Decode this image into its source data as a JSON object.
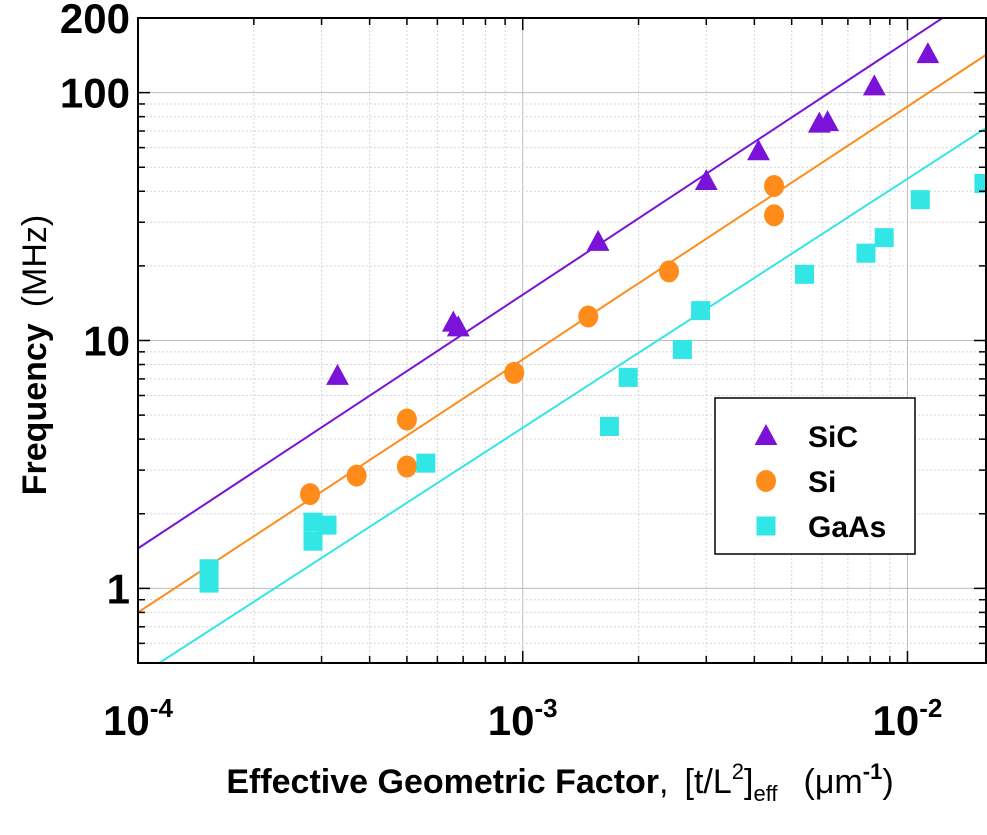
{
  "chart_data": {
    "type": "scatter",
    "x_scale": "log",
    "y_scale": "log",
    "xlim": [
      0.0001,
      0.016
    ],
    "ylim": [
      0.5,
      200
    ],
    "grid": true,
    "legend_position": "lower-right",
    "x_ticks": [
      {
        "value": 0.0001,
        "base": "10",
        "exp": "-4"
      },
      {
        "value": 0.001,
        "base": "10",
        "exp": "-3"
      },
      {
        "value": 0.01,
        "base": "10",
        "exp": "-2"
      }
    ],
    "y_ticks": [
      {
        "value": 1,
        "label": "1"
      },
      {
        "value": 10,
        "label": "10"
      },
      {
        "value": 100,
        "label": "100"
      },
      {
        "value": 200,
        "label": "200"
      }
    ],
    "xlabel": {
      "main": "Effective Geometric Factor",
      "comma": ",",
      "bracket_open": "[",
      "t_over_L": "t/L",
      "l_exp": "2",
      "bracket_close": "]",
      "subscript": "eff",
      "unit_open": "(",
      "unit_mu": "μm",
      "unit_exp": "-1",
      "unit_close": ")"
    },
    "ylabel": {
      "main": "Frequency",
      "unit": "(MHz)"
    },
    "series": [
      {
        "name": "SiC",
        "marker": "triangle",
        "color": "#7a12d8",
        "points": [
          [
            0.00033,
            7.2
          ],
          [
            0.00066,
            11.8
          ],
          [
            0.00068,
            11.3
          ],
          [
            0.00157,
            25
          ],
          [
            0.003,
            44
          ],
          [
            0.0041,
            58
          ],
          [
            0.0059,
            75
          ],
          [
            0.0062,
            76
          ],
          [
            0.0082,
            106
          ],
          [
            0.0113,
            143
          ]
        ],
        "fit_line": [
          [
            0.0001,
            1.45
          ],
          [
            0.016,
            261
          ]
        ]
      },
      {
        "name": "Si",
        "marker": "circle",
        "color": "#ff8c1a",
        "points": [
          [
            0.00028,
            2.4
          ],
          [
            0.00037,
            2.85
          ],
          [
            0.0005,
            3.1
          ],
          [
            0.0005,
            4.8
          ],
          [
            0.00095,
            7.4
          ],
          [
            0.00148,
            12.5
          ],
          [
            0.0024,
            19
          ],
          [
            0.0045,
            42
          ],
          [
            0.0045,
            32
          ]
        ],
        "fit_line": [
          [
            0.0001,
            0.8
          ],
          [
            0.016,
            142
          ]
        ]
      },
      {
        "name": "GaAs",
        "marker": "square",
        "color": "#33e6e6",
        "points": [
          [
            0.000153,
            1.2
          ],
          [
            0.000153,
            1.05
          ],
          [
            0.000285,
            1.85
          ],
          [
            0.000285,
            1.55
          ],
          [
            0.00031,
            1.8
          ],
          [
            0.00056,
            3.2
          ],
          [
            0.00168,
            4.5
          ],
          [
            0.00188,
            7.1
          ],
          [
            0.0026,
            9.2
          ],
          [
            0.0029,
            13.2
          ],
          [
            0.0054,
            18.5
          ],
          [
            0.0078,
            22.5
          ],
          [
            0.0087,
            26
          ],
          [
            0.0108,
            37
          ],
          [
            0.0158,
            43
          ]
        ],
        "fit_line": [
          [
            0.0001,
            0.44
          ],
          [
            0.016,
            72
          ]
        ]
      }
    ]
  }
}
